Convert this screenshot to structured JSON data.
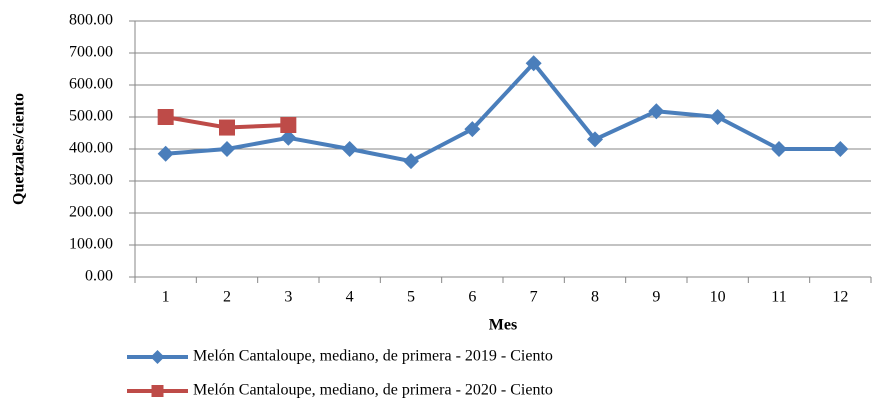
{
  "chart_data": {
    "type": "line",
    "y_label": "Quetzales/ciento",
    "x_label": "Mes",
    "categories": [
      "1",
      "2",
      "3",
      "4",
      "5",
      "6",
      "7",
      "8",
      "9",
      "10",
      "11",
      "12"
    ],
    "series": [
      {
        "name": "Melón Cantaloupe, mediano, de primera - 2019 - Ciento",
        "color": "#4a7ebb",
        "marker": "diamond",
        "values": [
          385,
          400,
          435,
          400,
          362,
          462,
          668,
          430,
          518,
          500,
          400,
          400
        ]
      },
      {
        "name": "Melón Cantaloupe, mediano, de primera - 2020 - Ciento",
        "color": "#be4b48",
        "marker": "square",
        "values": [
          500,
          467,
          475,
          null,
          null,
          null,
          null,
          null,
          null,
          null,
          null,
          null
        ]
      }
    ],
    "ylim": [
      0,
      800
    ],
    "yticks": [
      {
        "value": 0,
        "label": "0.00"
      },
      {
        "value": 100,
        "label": "100.00"
      },
      {
        "value": 200,
        "label": "200.00"
      },
      {
        "value": 300,
        "label": "300.00"
      },
      {
        "value": 400,
        "label": "400.00"
      },
      {
        "value": 500,
        "label": "500.00"
      },
      {
        "value": 600,
        "label": "600.00"
      },
      {
        "value": 700,
        "label": "700.00"
      },
      {
        "value": 800,
        "label": "800.00"
      }
    ],
    "grid": true
  }
}
